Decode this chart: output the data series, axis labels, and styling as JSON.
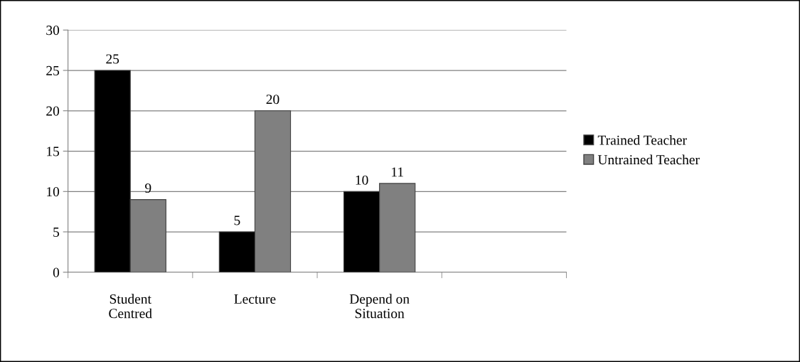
{
  "chart_data": {
    "type": "bar",
    "categories": [
      "Student\nCentred",
      "Lecture",
      "Depend on\nSituation",
      null
    ],
    "series": [
      {
        "name": "Trained Teacher",
        "color": "#000000",
        "values": [
          25,
          5,
          10,
          null
        ]
      },
      {
        "name": "Untrained Teacher",
        "color": "#808080",
        "values": [
          9,
          20,
          11,
          null
        ]
      }
    ],
    "ylim": [
      0,
      30
    ],
    "yticks": [
      0,
      5,
      10,
      15,
      20,
      25,
      30
    ],
    "grid": "y",
    "legend": "right",
    "data_labels": true
  }
}
